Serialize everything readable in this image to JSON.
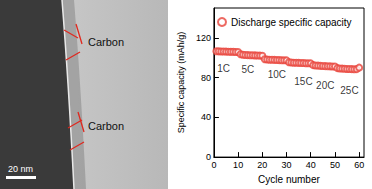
{
  "image": {
    "labels": [
      "Carbon",
      "Carbon"
    ],
    "scale_bar": "20 nm"
  },
  "chart_data": {
    "type": "scatter",
    "x": [
      1,
      2,
      3,
      4,
      5,
      6,
      7,
      8,
      9,
      10,
      11,
      12,
      13,
      14,
      15,
      16,
      17,
      18,
      19,
      20,
      21,
      22,
      23,
      24,
      25,
      26,
      27,
      28,
      29,
      30,
      31,
      32,
      33,
      34,
      35,
      36,
      37,
      38,
      39,
      40,
      41,
      42,
      43,
      44,
      45,
      46,
      47,
      48,
      49,
      50,
      51,
      52,
      53,
      54,
      55,
      56,
      57,
      58,
      59,
      60
    ],
    "series": [
      {
        "name": "Discharge specific capacity",
        "color": "#e8453c",
        "marker": "hollow",
        "values": [
          106.5,
          106.4,
          106.3,
          106.2,
          106.1,
          106.0,
          105.9,
          105.9,
          105.8,
          105.8,
          103.5,
          103.0,
          102.8,
          102.6,
          102.5,
          102.4,
          102.3,
          102.2,
          102.1,
          102.0,
          98.5,
          98.2,
          98.0,
          97.9,
          97.8,
          97.7,
          97.6,
          97.5,
          97.4,
          97.3,
          95.5,
          95.2,
          95.0,
          94.9,
          94.8,
          94.7,
          94.6,
          94.5,
          94.4,
          94.3,
          92.5,
          92.2,
          92.0,
          91.8,
          91.6,
          91.5,
          91.4,
          91.3,
          91.2,
          91.1,
          89.5,
          89.2,
          89.0,
          88.8,
          88.7,
          88.6,
          88.5,
          88.4,
          88.5,
          90.0
        ]
      }
    ],
    "x_label": "Cycle number",
    "y_label": "Specific capacity (mAh/g)",
    "xlim": [
      0,
      62
    ],
    "ylim": [
      0,
      150
    ],
    "xticks": [
      0,
      10,
      20,
      30,
      40,
      50,
      60
    ],
    "yticks": [
      0,
      40,
      80,
      120
    ],
    "grid": false,
    "legend": "upper left",
    "annotations": [
      {
        "text": "1C",
        "x": 4,
        "y": 89
      },
      {
        "text": "5C",
        "x": 14,
        "y": 88
      },
      {
        "text": "10C",
        "x": 26,
        "y": 83
      },
      {
        "text": "15C",
        "x": 37,
        "y": 76
      },
      {
        "text": "20C",
        "x": 46,
        "y": 72
      },
      {
        "text": "25C",
        "x": 56,
        "y": 67
      }
    ]
  }
}
